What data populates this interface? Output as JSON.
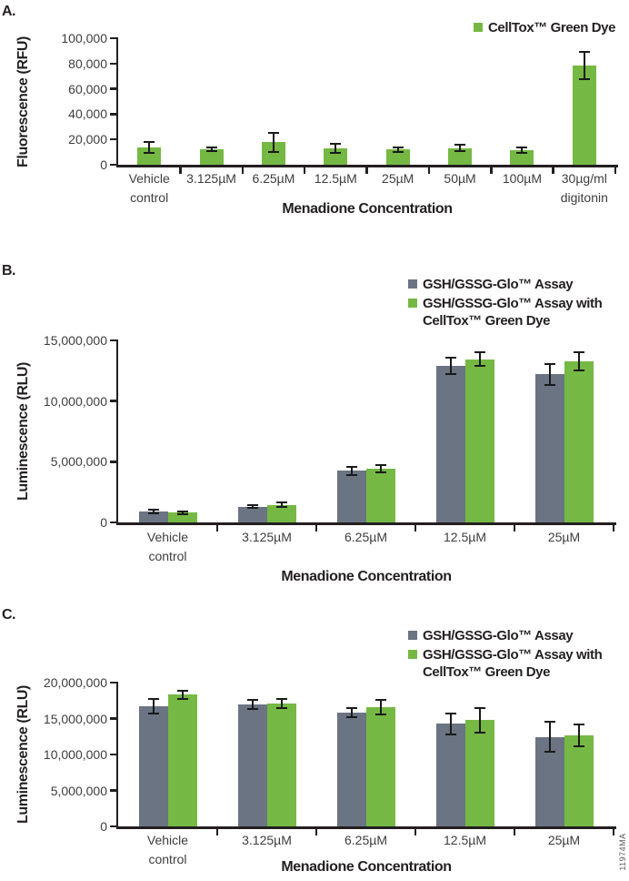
{
  "figure_id": "11974MA",
  "colors": {
    "green": "#75b843",
    "slate_gray": "#6b7482",
    "axis_black": "#231f20",
    "tick_text": "#3d3d3d"
  },
  "chart_data": [
    {
      "type": "bar",
      "panel_label": "A.",
      "xlabel": "Menadione Concentration",
      "ylabel": "Fluorescence (RFU)",
      "ylim": [
        0,
        100000
      ],
      "grid": false,
      "legend_position": "top-right",
      "ytick_values": [
        0,
        20000,
        40000,
        60000,
        80000,
        100000
      ],
      "ytick_labels": [
        "0",
        "20,000",
        "40,000",
        "60,000",
        "80,000",
        "100,000"
      ],
      "categories": [
        "Vehicle\ncontrol",
        "3.125µM",
        "6.25µM",
        "12.5µM",
        "25µM",
        "50µM",
        "100µM",
        "30µg/ml\ndigitonin"
      ],
      "series": [
        {
          "name": "CellTox™ Green Dye",
          "color": "#75b843",
          "values": [
            13500,
            12200,
            17800,
            13200,
            12000,
            13000,
            11500,
            78500
          ],
          "errors": [
            4200,
            1500,
            7500,
            3500,
            1800,
            2500,
            2000,
            11000
          ]
        }
      ]
    },
    {
      "type": "bar",
      "panel_label": "B.",
      "xlabel": "Menadione Concentration",
      "ylabel": "Luminescence (RLU)",
      "ylim": [
        0,
        15000000
      ],
      "grid": false,
      "legend_position": "top-right",
      "ytick_values": [
        0,
        5000000,
        10000000,
        15000000
      ],
      "ytick_labels": [
        "0",
        "5,000,000",
        "10,000,000",
        "15,000,000"
      ],
      "categories": [
        "Vehicle\ncontrol",
        "3.125µM",
        "6.25µM",
        "12.5µM",
        "25µM"
      ],
      "series": [
        {
          "name": "GSH/GSSG-Glo™ Assay",
          "color": "#6b7482",
          "values": [
            900000,
            1300000,
            4250000,
            12900000,
            12200000
          ],
          "errors": [
            150000,
            120000,
            350000,
            650000,
            850000
          ]
        },
        {
          "name": "GSH/GSSG-Glo™ Assay with\nCellTox™ Green Dye",
          "color": "#75b843",
          "values": [
            800000,
            1450000,
            4400000,
            13450000,
            13300000
          ],
          "errors": [
            100000,
            200000,
            300000,
            550000,
            750000
          ]
        }
      ]
    },
    {
      "type": "bar",
      "panel_label": "C.",
      "xlabel": "Menadione Concentration",
      "ylabel": "Luminescence (RLU)",
      "ylim": [
        0,
        20000000
      ],
      "grid": false,
      "legend_position": "top-right",
      "ytick_values": [
        0,
        5000000,
        10000000,
        15000000,
        20000000
      ],
      "ytick_labels": [
        "0",
        "5,000,000",
        "10,000,000",
        "15,000,000",
        "20,000,000"
      ],
      "categories": [
        "Vehicle\ncontrol",
        "3.125µM",
        "6.25µM",
        "12.5µM",
        "25µM"
      ],
      "series": [
        {
          "name": "GSH/GSSG-Glo™ Assay",
          "color": "#6b7482",
          "values": [
            16700000,
            16950000,
            15850000,
            14250000,
            12450000
          ],
          "errors": [
            1000000,
            650000,
            600000,
            1500000,
            2050000
          ]
        },
        {
          "name": "GSH/GSSG-Glo™ Assay with\nCellTox™ Green Dye",
          "color": "#75b843",
          "values": [
            18300000,
            17100000,
            16550000,
            14750000,
            12650000
          ],
          "errors": [
            550000,
            650000,
            1000000,
            1750000,
            1500000
          ]
        }
      ]
    }
  ]
}
